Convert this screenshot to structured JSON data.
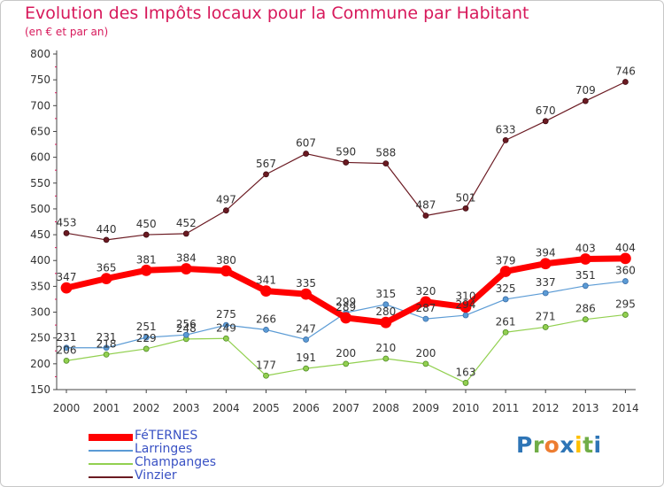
{
  "header": {
    "title": "Evolution des Impôts locaux pour la Commune par Habitant",
    "subtitle": "(en € et par an)"
  },
  "chart_data": {
    "type": "line",
    "title": "Evolution des Impôts locaux pour la Commune par Habitant",
    "subtitle": "(en € et par an)",
    "xlabel": "",
    "ylabel": "",
    "x": [
      "2000",
      "2001",
      "2002",
      "2003",
      "2004",
      "2005",
      "2006",
      "2007",
      "2008",
      "2009",
      "2010",
      "2011",
      "2012",
      "2013",
      "2014"
    ],
    "ylim": [
      150,
      800
    ],
    "yticks": [
      150,
      200,
      250,
      300,
      350,
      400,
      450,
      500,
      550,
      600,
      650,
      700,
      750,
      800
    ],
    "grid": false,
    "legend_position": "bottom-left",
    "series": [
      {
        "name": "FéTERNES",
        "color": "#ff0000",
        "values": [
          347,
          365,
          381,
          384,
          380,
          341,
          335,
          289,
          280,
          320,
          310,
          379,
          394,
          403,
          404
        ]
      },
      {
        "name": "Larringes",
        "color": "#5b9bd5",
        "values": [
          231,
          231,
          251,
          256,
          275,
          266,
          247,
          299,
          315,
          287,
          294,
          325,
          337,
          351,
          360
        ]
      },
      {
        "name": "Champanges",
        "color": "#92d050",
        "values": [
          206,
          218,
          229,
          248,
          249,
          177,
          191,
          200,
          210,
          200,
          163,
          261,
          271,
          286,
          295
        ]
      },
      {
        "name": "Vinzier",
        "color": "#6b1a22",
        "values": [
          453,
          440,
          450,
          452,
          497,
          567,
          607,
          590,
          588,
          487,
          501,
          633,
          670,
          709,
          746
        ]
      }
    ]
  },
  "legend": {
    "items": [
      {
        "label": "FéTERNES",
        "color": "#ff0000"
      },
      {
        "label": "Larringes",
        "color": "#5b9bd5"
      },
      {
        "label": "Champanges",
        "color": "#92d050"
      },
      {
        "label": "Vinzier",
        "color": "#6b1a22"
      }
    ]
  },
  "logo": {
    "text": "Proxiti",
    "letter_colors": [
      "#2e75b6",
      "#70ad47",
      "#ed7d31",
      "#2e75b6",
      "#ffc000",
      "#70ad47",
      "#2e75b6"
    ]
  }
}
